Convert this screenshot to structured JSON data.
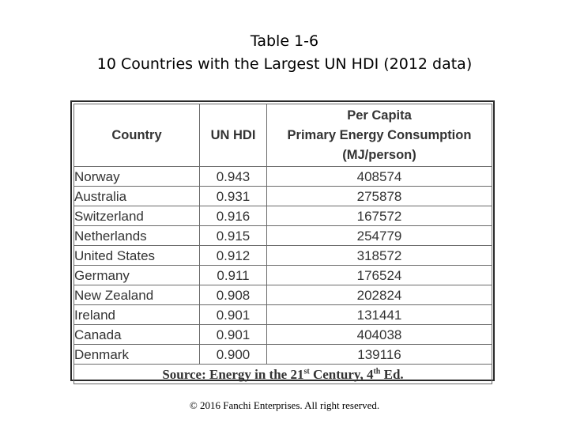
{
  "title": {
    "line1": "Table 1-6",
    "line2": "10 Countries with the Largest UN HDI (2012 data)"
  },
  "table": {
    "headers": {
      "country": "Country",
      "hdi": "UN HDI",
      "energy_line1": "Per Capita",
      "energy_line2": "Primary Energy Consumption",
      "energy_line3": "(MJ/person)"
    },
    "rows": [
      {
        "country": "Norway",
        "hdi": "0.943",
        "energy": "408574"
      },
      {
        "country": "Australia",
        "hdi": "0.931",
        "energy": "275878"
      },
      {
        "country": "Switzerland",
        "hdi": "0.916",
        "energy": "167572"
      },
      {
        "country": "Netherlands",
        "hdi": "0.915",
        "energy": "254779"
      },
      {
        "country": "United States",
        "hdi": "0.912",
        "energy": "318572"
      },
      {
        "country": "Germany",
        "hdi": "0.911",
        "energy": "176524"
      },
      {
        "country": "New Zealand",
        "hdi": "0.908",
        "energy": "202824"
      },
      {
        "country": "Ireland",
        "hdi": "0.901",
        "energy": "131441"
      },
      {
        "country": "Canada",
        "hdi": "0.901",
        "energy": "404038"
      },
      {
        "country": "Denmark",
        "hdi": "0.900",
        "energy": "139116"
      }
    ],
    "source": {
      "prefix": "Source: Energy in the 21",
      "sup1": "st",
      "middle": " Century, 4",
      "sup2": "th",
      "suffix": " Ed."
    }
  },
  "footer": {
    "copyright": "© 2016 Fanchi Enterprises. All right reserved."
  }
}
